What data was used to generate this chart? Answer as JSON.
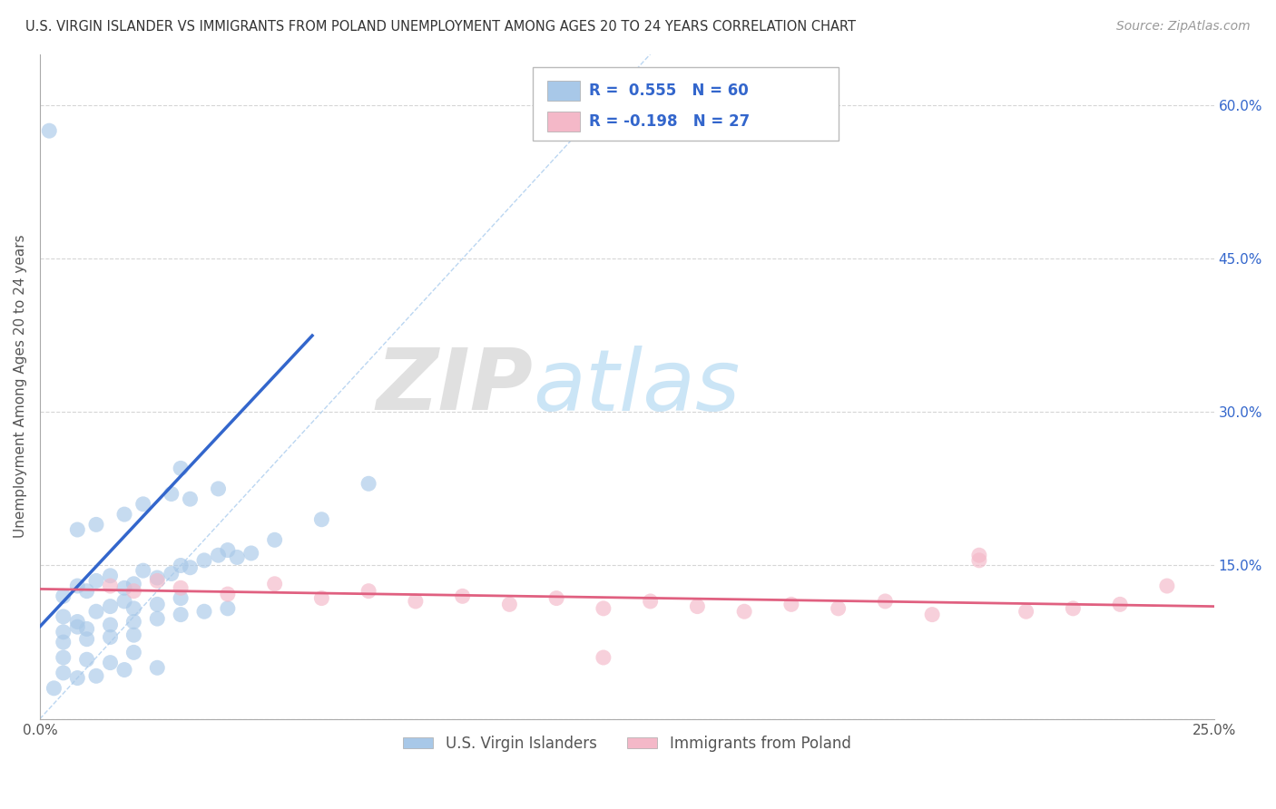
{
  "title": "U.S. VIRGIN ISLANDER VS IMMIGRANTS FROM POLAND UNEMPLOYMENT AMONG AGES 20 TO 24 YEARS CORRELATION CHART",
  "source": "Source: ZipAtlas.com",
  "ylabel": "Unemployment Among Ages 20 to 24 years",
  "xlim": [
    0.0,
    0.25
  ],
  "ylim": [
    0.0,
    0.65
  ],
  "xticks": [
    0.0,
    0.05,
    0.1,
    0.15,
    0.2,
    0.25
  ],
  "xticklabels": [
    "0.0%",
    "",
    "",
    "",
    "",
    "25.0%"
  ],
  "yticks": [
    0.0,
    0.15,
    0.3,
    0.45,
    0.6
  ],
  "yticklabels": [
    "",
    "15.0%",
    "30.0%",
    "45.0%",
    "60.0%"
  ],
  "blue_R": 0.555,
  "blue_N": 60,
  "pink_R": -0.198,
  "pink_N": 27,
  "blue_color": "#a8c8e8",
  "blue_line_color": "#3366cc",
  "pink_color": "#f4b8c8",
  "pink_line_color": "#e06080",
  "legend_label_blue": "U.S. Virgin Islanders",
  "legend_label_pink": "Immigrants from Poland",
  "background_color": "#ffffff",
  "grid_color": "#cccccc",
  "blue_x": [
    0.005,
    0.008,
    0.01,
    0.012,
    0.015,
    0.018,
    0.02,
    0.022,
    0.025,
    0.028,
    0.03,
    0.032,
    0.035,
    0.038,
    0.04,
    0.042,
    0.045,
    0.005,
    0.008,
    0.012,
    0.015,
    0.018,
    0.02,
    0.025,
    0.03,
    0.005,
    0.008,
    0.01,
    0.015,
    0.02,
    0.025,
    0.03,
    0.035,
    0.04,
    0.005,
    0.01,
    0.015,
    0.02,
    0.008,
    0.012,
    0.018,
    0.022,
    0.028,
    0.032,
    0.038,
    0.005,
    0.01,
    0.015,
    0.02,
    0.005,
    0.008,
    0.012,
    0.018,
    0.025,
    0.05,
    0.06,
    0.07,
    0.03,
    0.003,
    0.002
  ],
  "blue_y": [
    0.12,
    0.13,
    0.125,
    0.135,
    0.14,
    0.128,
    0.132,
    0.145,
    0.138,
    0.142,
    0.15,
    0.148,
    0.155,
    0.16,
    0.165,
    0.158,
    0.162,
    0.1,
    0.095,
    0.105,
    0.11,
    0.115,
    0.108,
    0.112,
    0.118,
    0.085,
    0.09,
    0.088,
    0.092,
    0.095,
    0.098,
    0.102,
    0.105,
    0.108,
    0.075,
    0.078,
    0.08,
    0.082,
    0.185,
    0.19,
    0.2,
    0.21,
    0.22,
    0.215,
    0.225,
    0.06,
    0.058,
    0.055,
    0.065,
    0.045,
    0.04,
    0.042,
    0.048,
    0.05,
    0.175,
    0.195,
    0.23,
    0.245,
    0.03,
    0.575
  ],
  "pink_x": [
    0.015,
    0.02,
    0.025,
    0.03,
    0.04,
    0.05,
    0.06,
    0.07,
    0.08,
    0.09,
    0.1,
    0.11,
    0.12,
    0.13,
    0.14,
    0.15,
    0.16,
    0.17,
    0.18,
    0.19,
    0.2,
    0.21,
    0.22,
    0.23,
    0.24,
    0.12,
    0.2
  ],
  "pink_y": [
    0.13,
    0.125,
    0.135,
    0.128,
    0.122,
    0.132,
    0.118,
    0.125,
    0.115,
    0.12,
    0.112,
    0.118,
    0.108,
    0.115,
    0.11,
    0.105,
    0.112,
    0.108,
    0.115,
    0.102,
    0.16,
    0.105,
    0.108,
    0.112,
    0.13,
    0.06,
    0.155
  ],
  "watermark_zip": "ZIP",
  "watermark_atlas": "atlas"
}
